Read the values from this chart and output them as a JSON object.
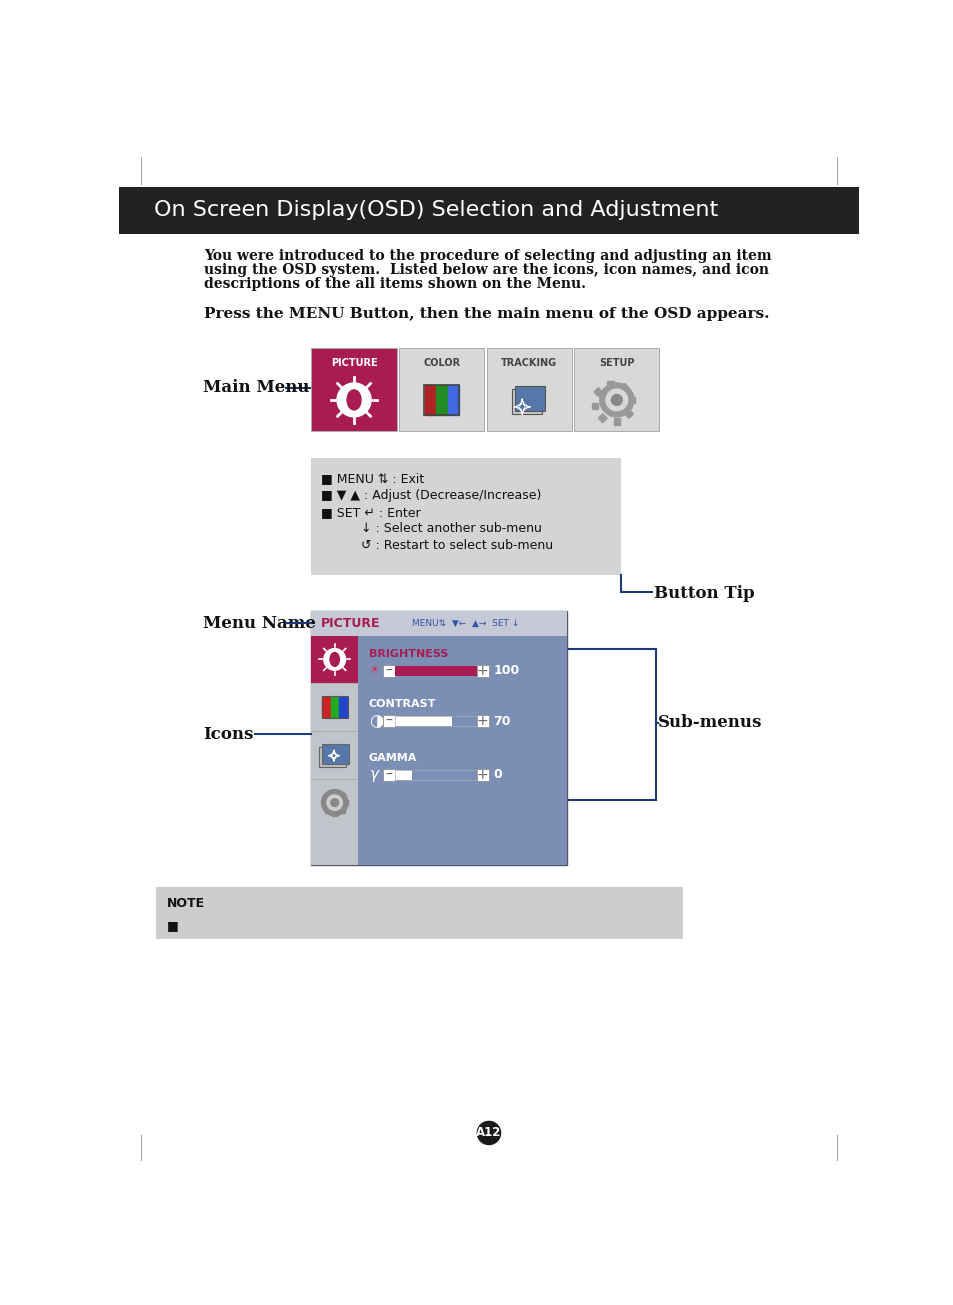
{
  "title": "On Screen Display(OSD) Selection and Adjustment",
  "title_bg": "#222222",
  "title_color": "#ffffff",
  "body_bg": "#ffffff",
  "intro_text_line1": "You were introduced to the procedure of selecting and adjusting an item",
  "intro_text_line2": "using the OSD system.  Listed below are the icons, icon names, and icon",
  "intro_text_line3": "descriptions of the all items shown on the Menu.",
  "press_text": "Press the MENU Button, then the main menu of the OSD appears.",
  "main_menu_label": "Main Menu",
  "menu_tabs": [
    "PICTURE",
    "COLOR",
    "TRACKING",
    "SETUP"
  ],
  "menu_tab_active_bg": "#a81c52",
  "menu_tab_inactive_bg": "#d8d8d8",
  "menu_tab_border": "#aaaaaa",
  "menu_tab_active_color": "#ffffff",
  "menu_tab_inactive_color": "#444444",
  "button_tip_box_bg": "#d4d4d4",
  "button_tip_lines": [
    "■ MENU ⇅ : Exit",
    "■ ▼ ▲ : Adjust (Decrease/Increase)",
    "■ SET ↵ : Enter",
    "          ↓ : Select another sub-menu",
    "          ↺ : Restart to select sub-menu"
  ],
  "button_tip_label": "Button Tip",
  "menu_name_label": "Menu Name",
  "icons_label": "Icons",
  "submenus_label": "Sub-menus",
  "osd_screen_bg": "#7b8fb5",
  "osd_header_bg": "#c5c8d5",
  "osd_frame_border": "#555566",
  "osd_picture_label": "PICTURE",
  "osd_picture_color": "#a81c52",
  "osd_brightness_label": "BRIGHTNESS",
  "osd_brightness_value": "100",
  "osd_brightness_bar_color": "#a81c52",
  "osd_contrast_label": "CONTRAST",
  "osd_contrast_value": "70",
  "osd_gamma_label": "GAMMA",
  "osd_gamma_value": "0",
  "osd_sidebar_bg": "#c2c4cc",
  "osd_sidebar_active_bg": "#a81c52",
  "note_bg": "#cccccc",
  "note_label": "NOTE",
  "page_label": "A12",
  "line_color": "#1a3a7a",
  "text_color_dark": "#111111",
  "label_font": "DejaVu Serif",
  "code_font": "DejaVu Sans"
}
